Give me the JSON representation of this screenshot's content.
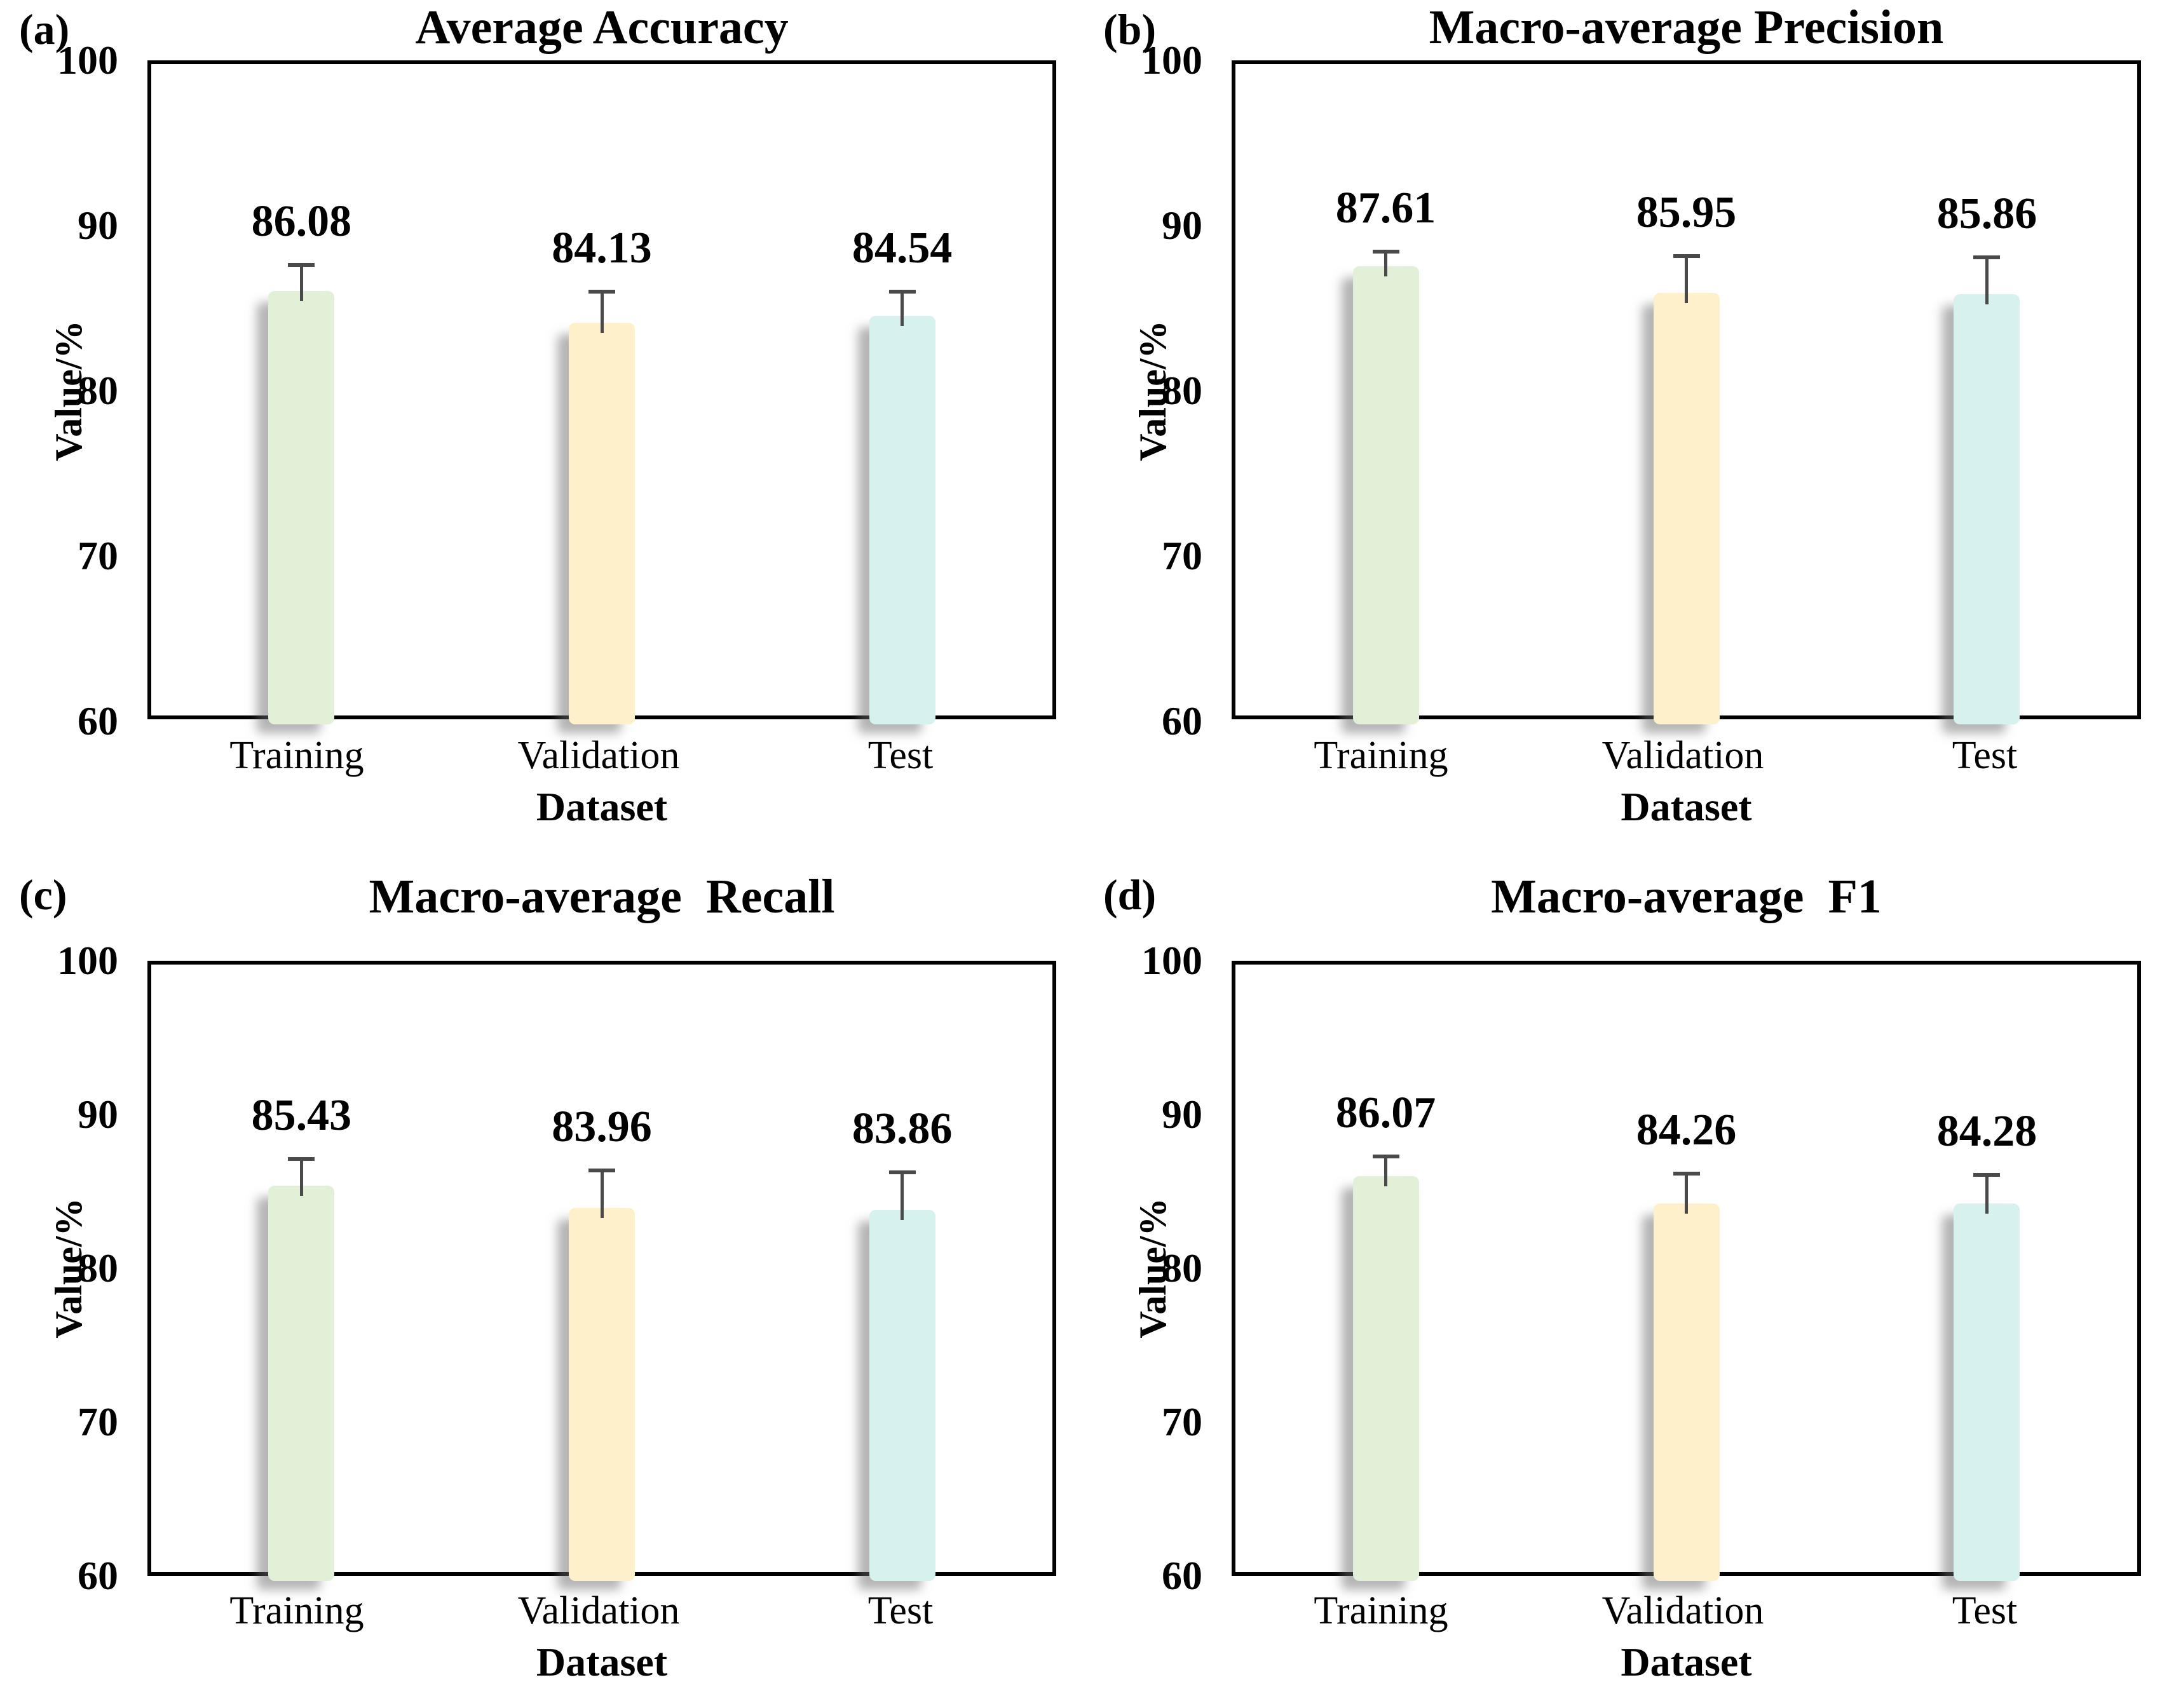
{
  "figure": {
    "background": "#ffffff",
    "layout": "2x2-grid",
    "axis_color": "#000000",
    "text_color": "#000000",
    "error_bar_color": "#4a4a4a",
    "bar_colors": [
      "#e3f0d8",
      "#fdf0ca",
      "#d7f1ee"
    ]
  },
  "chart_data": [
    {
      "type": "bar",
      "panel_label": "(a)",
      "title": "Average Accuracy",
      "xlabel": "Dataset",
      "ylabel": "Value/%",
      "categories": [
        "Training",
        "Validation",
        "Test"
      ],
      "values": [
        86.08,
        84.13,
        84.54
      ],
      "errors_plus": [
        1.7,
        2.0,
        1.6
      ],
      "bar_colors": [
        "#e3f0d8",
        "#fdf0ca",
        "#d7f1ee"
      ],
      "ylim": [
        60,
        100
      ],
      "yticks": [
        100,
        90,
        80,
        70,
        60
      ],
      "grid": false,
      "legend": false
    },
    {
      "type": "bar",
      "panel_label": "(b)",
      "title": "Macro-average Precision",
      "xlabel": "Dataset",
      "ylabel": "Value/%",
      "categories": [
        "Training",
        "Validation",
        "Test"
      ],
      "values": [
        87.61,
        85.95,
        85.86
      ],
      "errors_plus": [
        1.0,
        2.4,
        2.4
      ],
      "bar_colors": [
        "#e3f0d8",
        "#fdf0ca",
        "#d7f1ee"
      ],
      "ylim": [
        60,
        100
      ],
      "yticks": [
        100,
        90,
        80,
        70,
        60
      ],
      "grid": false,
      "legend": false
    },
    {
      "type": "bar",
      "panel_label": "(c)",
      "title": "Macro-average  Recall",
      "xlabel": "Dataset",
      "ylabel": "Value/%",
      "categories": [
        "Training",
        "Validation",
        "Test"
      ],
      "values": [
        85.43,
        83.96,
        83.86
      ],
      "errors_plus": [
        1.9,
        2.6,
        2.6
      ],
      "bar_colors": [
        "#e3f0d8",
        "#fdf0ca",
        "#d7f1ee"
      ],
      "ylim": [
        60,
        100
      ],
      "yticks": [
        100,
        90,
        80,
        70,
        60
      ],
      "grid": false,
      "legend": false
    },
    {
      "type": "bar",
      "panel_label": "(d)",
      "title": "Macro-average  F1",
      "xlabel": "Dataset",
      "ylabel": "Value/%",
      "categories": [
        "Training",
        "Validation",
        "Test"
      ],
      "values": [
        86.07,
        84.26,
        84.28
      ],
      "errors_plus": [
        1.4,
        2.1,
        2.0
      ],
      "bar_colors": [
        "#e3f0d8",
        "#fdf0ca",
        "#d7f1ee"
      ],
      "ylim": [
        60,
        100
      ],
      "yticks": [
        100,
        90,
        80,
        70,
        60
      ],
      "grid": false,
      "legend": false
    }
  ]
}
